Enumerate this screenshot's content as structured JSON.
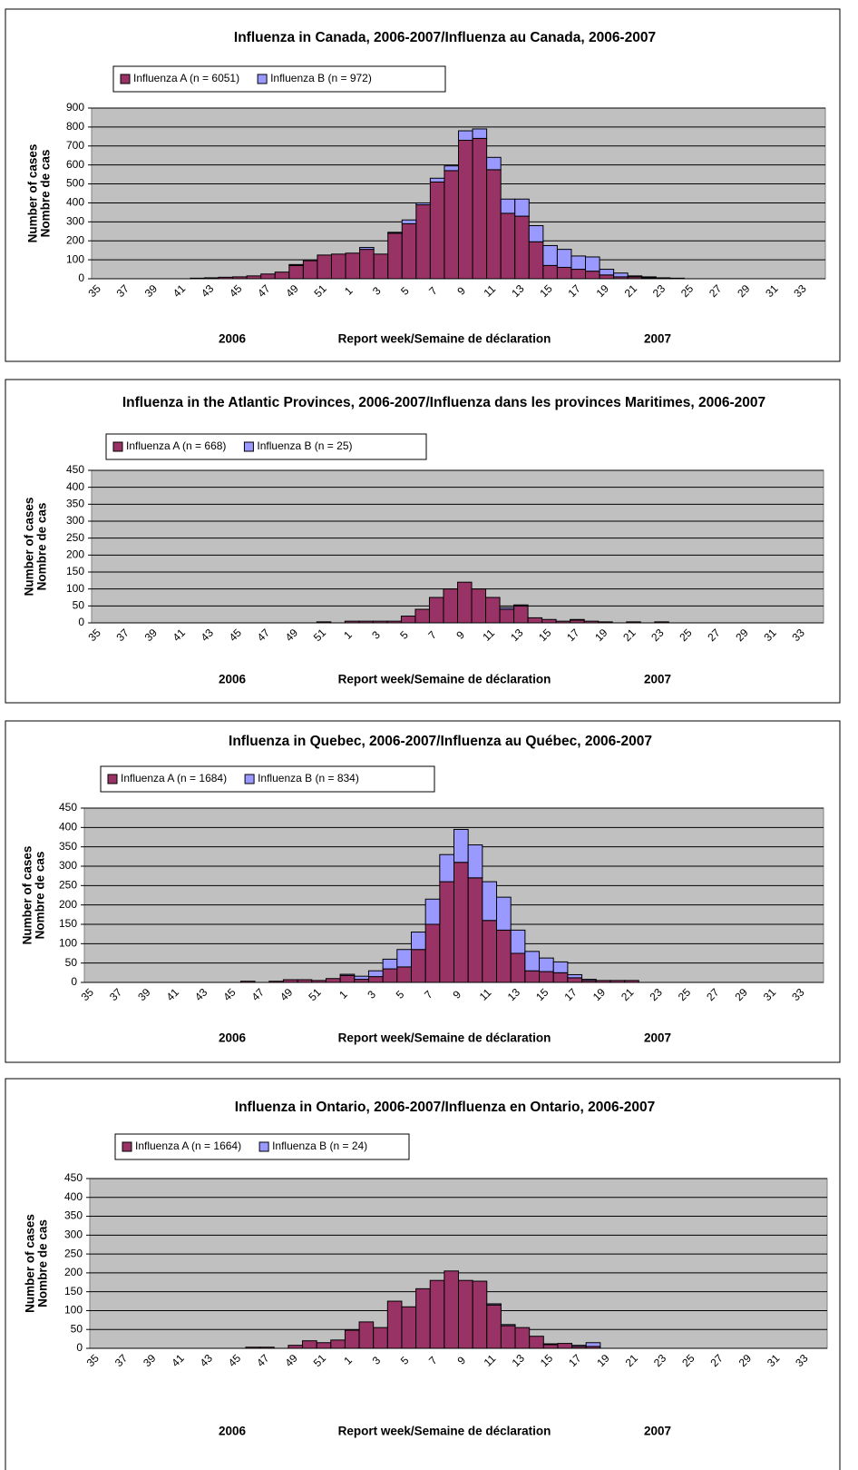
{
  "chart_data": [
    {
      "type": "bar",
      "stacked": true,
      "title": "Influenza in Canada, 2006-2007/Influenza au Canada, 2006-2007",
      "ylabel": [
        "Number of cases",
        "Nombre de cas"
      ],
      "xlabel": "Report week/Semaine de déclaration",
      "year_labels": [
        "2006",
        "2007"
      ],
      "categories": [
        "35",
        null,
        "37",
        null,
        "39",
        null,
        "41",
        null,
        "43",
        null,
        "45",
        null,
        "47",
        null,
        "49",
        null,
        "51",
        null,
        "1",
        null,
        "3",
        null,
        "5",
        null,
        "7",
        null,
        "9",
        null,
        "11",
        null,
        "13",
        null,
        "15",
        null,
        "17",
        null,
        "19",
        null,
        "21",
        null,
        "23",
        null,
        "25",
        null,
        "27",
        null,
        "29",
        null,
        "31",
        null,
        "33",
        null
      ],
      "series": [
        {
          "name": "Influenza A (n = 6051)",
          "color": "#993366",
          "values": [
            0,
            0,
            0,
            0,
            0,
            0,
            0,
            3,
            5,
            8,
            10,
            15,
            25,
            35,
            70,
            95,
            125,
            130,
            135,
            155,
            130,
            240,
            290,
            390,
            510,
            570,
            730,
            740,
            575,
            345,
            330,
            195,
            70,
            60,
            50,
            40,
            20,
            10,
            10,
            5,
            5,
            3,
            0,
            0,
            0,
            0,
            0,
            0,
            0,
            0,
            0,
            0
          ]
        },
        {
          "name": "Influenza B (n = 972)",
          "color": "#9999ff",
          "values": [
            0,
            0,
            0,
            0,
            0,
            0,
            0,
            0,
            0,
            0,
            0,
            0,
            0,
            0,
            5,
            0,
            0,
            0,
            0,
            10,
            0,
            5,
            20,
            10,
            20,
            25,
            50,
            50,
            65,
            75,
            90,
            85,
            105,
            95,
            70,
            75,
            30,
            20,
            5,
            5,
            0,
            0,
            0,
            0,
            0,
            0,
            0,
            0,
            0,
            0,
            0,
            0
          ]
        }
      ],
      "ylim": [
        0,
        900
      ],
      "yticks": [
        0,
        100,
        200,
        300,
        400,
        500,
        600,
        700,
        800,
        900
      ],
      "grid": true,
      "plot_background": "#c0c0c0"
    },
    {
      "type": "bar",
      "stacked": true,
      "title": "Influenza in the Atlantic Provinces, 2006-2007/Influenza dans les provinces Maritimes, 2006-2007",
      "ylabel": [
        "Number of cases",
        "Nombre de cas"
      ],
      "xlabel": "Report week/Semaine de déclaration",
      "year_labels": [
        "2006",
        "2007"
      ],
      "categories": [
        "35",
        null,
        "37",
        null,
        "39",
        null,
        "41",
        null,
        "43",
        null,
        "45",
        null,
        "47",
        null,
        "49",
        null,
        "51",
        null,
        "1",
        null,
        "3",
        null,
        "5",
        null,
        "7",
        null,
        "9",
        null,
        "11",
        null,
        "13",
        null,
        "15",
        null,
        "17",
        null,
        "19",
        null,
        "21",
        null,
        "23",
        null,
        "25",
        null,
        "27",
        null,
        "29",
        null,
        "31",
        null,
        "33",
        null
      ],
      "series": [
        {
          "name": "Influenza A (n = 668)",
          "color": "#993366",
          "values": [
            0,
            0,
            0,
            0,
            0,
            0,
            0,
            0,
            0,
            0,
            0,
            0,
            0,
            0,
            0,
            0,
            3,
            0,
            5,
            5,
            5,
            5,
            20,
            40,
            75,
            100,
            120,
            100,
            75,
            40,
            50,
            15,
            10,
            5,
            8,
            5,
            3,
            0,
            3,
            0,
            3,
            0,
            0,
            0,
            0,
            0,
            0,
            0,
            0,
            0,
            0,
            0
          ]
        },
        {
          "name": "Influenza B (n = 25)",
          "color": "#9999ff",
          "values": [
            0,
            0,
            0,
            0,
            0,
            0,
            0,
            0,
            0,
            0,
            0,
            0,
            0,
            0,
            0,
            0,
            0,
            0,
            0,
            0,
            0,
            0,
            0,
            0,
            0,
            0,
            0,
            0,
            0,
            5,
            3,
            0,
            0,
            0,
            2,
            0,
            0,
            0,
            0,
            0,
            0,
            0,
            0,
            0,
            0,
            0,
            0,
            0,
            0,
            0,
            0,
            0
          ]
        }
      ],
      "ylim": [
        0,
        450
      ],
      "yticks": [
        0,
        50,
        100,
        150,
        200,
        250,
        300,
        350,
        400,
        450
      ],
      "grid": true,
      "plot_background": "#c0c0c0"
    },
    {
      "type": "bar",
      "stacked": true,
      "title": "Influenza in Quebec, 2006-2007/Influenza au Québec, 2006-2007",
      "ylabel": [
        "Number of cases",
        "Nombre de cas"
      ],
      "xlabel": "Report week/Semaine de déclaration",
      "year_labels": [
        "2006",
        "2007"
      ],
      "categories": [
        "35",
        null,
        "37",
        null,
        "39",
        null,
        "41",
        null,
        "43",
        null,
        "45",
        null,
        "47",
        null,
        "49",
        null,
        "51",
        null,
        "1",
        null,
        "3",
        null,
        "5",
        null,
        "7",
        null,
        "9",
        null,
        "11",
        null,
        "13",
        null,
        "15",
        null,
        "17",
        null,
        "19",
        null,
        "21",
        null,
        "23",
        null,
        "25",
        null,
        "27",
        null,
        "29",
        null,
        "31",
        null,
        "33",
        null
      ],
      "series": [
        {
          "name": "Influenza A (n = 1684)",
          "color": "#993366",
          "values": [
            0,
            0,
            0,
            0,
            0,
            0,
            0,
            0,
            0,
            0,
            0,
            3,
            0,
            3,
            7,
            7,
            5,
            10,
            18,
            8,
            15,
            35,
            40,
            85,
            150,
            260,
            310,
            270,
            160,
            135,
            75,
            30,
            28,
            25,
            12,
            5,
            5,
            5,
            5,
            0,
            0,
            0,
            0,
            0,
            0,
            0,
            0,
            0,
            0,
            0,
            0,
            0
          ]
        },
        {
          "name": "Influenza B (n = 834)",
          "color": "#9999ff",
          "values": [
            0,
            0,
            0,
            0,
            0,
            0,
            0,
            0,
            0,
            0,
            0,
            0,
            0,
            0,
            0,
            0,
            0,
            0,
            3,
            8,
            15,
            25,
            45,
            45,
            65,
            70,
            85,
            85,
            100,
            85,
            60,
            50,
            35,
            28,
            8,
            3,
            0,
            0,
            0,
            0,
            0,
            0,
            0,
            0,
            0,
            0,
            0,
            0,
            0,
            0,
            0,
            0
          ]
        }
      ],
      "ylim": [
        0,
        450
      ],
      "yticks": [
        0,
        50,
        100,
        150,
        200,
        250,
        300,
        350,
        400,
        450
      ],
      "grid": true,
      "plot_background": "#c0c0c0"
    },
    {
      "type": "bar",
      "stacked": true,
      "title": "Influenza in Ontario, 2006-2007/Influenza en Ontario, 2006-2007",
      "ylabel": [
        "Number of cases",
        "Nombre de cas"
      ],
      "xlabel": "Report week/Semaine de déclaration",
      "year_labels": [
        "2006",
        "2007"
      ],
      "categories": [
        "35",
        null,
        "37",
        null,
        "39",
        null,
        "41",
        null,
        "43",
        null,
        "45",
        null,
        "47",
        null,
        "49",
        null,
        "51",
        null,
        "1",
        null,
        "3",
        null,
        "5",
        null,
        "7",
        null,
        "9",
        null,
        "11",
        null,
        "13",
        null,
        "15",
        null,
        "17",
        null,
        "19",
        null,
        "21",
        null,
        "23",
        null,
        "25",
        null,
        "27",
        null,
        "29",
        null,
        "31",
        null,
        "33",
        null
      ],
      "series": [
        {
          "name": "Influenza A (n = 1664)",
          "color": "#993366",
          "values": [
            0,
            0,
            0,
            0,
            0,
            0,
            0,
            0,
            0,
            0,
            0,
            3,
            3,
            0,
            8,
            20,
            15,
            22,
            48,
            70,
            55,
            125,
            110,
            158,
            180,
            205,
            180,
            178,
            115,
            60,
            55,
            32,
            10,
            13,
            5,
            5,
            0,
            0,
            0,
            0,
            0,
            0,
            0,
            0,
            0,
            0,
            0,
            0,
            0,
            0,
            0,
            0
          ]
        },
        {
          "name": "Influenza B (n = 24)",
          "color": "#9999ff",
          "values": [
            0,
            0,
            0,
            0,
            0,
            0,
            0,
            0,
            0,
            0,
            0,
            0,
            0,
            0,
            0,
            0,
            0,
            0,
            0,
            0,
            0,
            0,
            0,
            0,
            0,
            0,
            0,
            0,
            3,
            3,
            0,
            0,
            2,
            0,
            3,
            10,
            0,
            0,
            0,
            0,
            0,
            0,
            0,
            0,
            0,
            0,
            0,
            0,
            0,
            0,
            0,
            0
          ]
        }
      ],
      "ylim": [
        0,
        450
      ],
      "yticks": [
        0,
        50,
        100,
        150,
        200,
        250,
        300,
        350,
        400,
        450
      ],
      "grid": true,
      "plot_background": "#c0c0c0"
    }
  ]
}
